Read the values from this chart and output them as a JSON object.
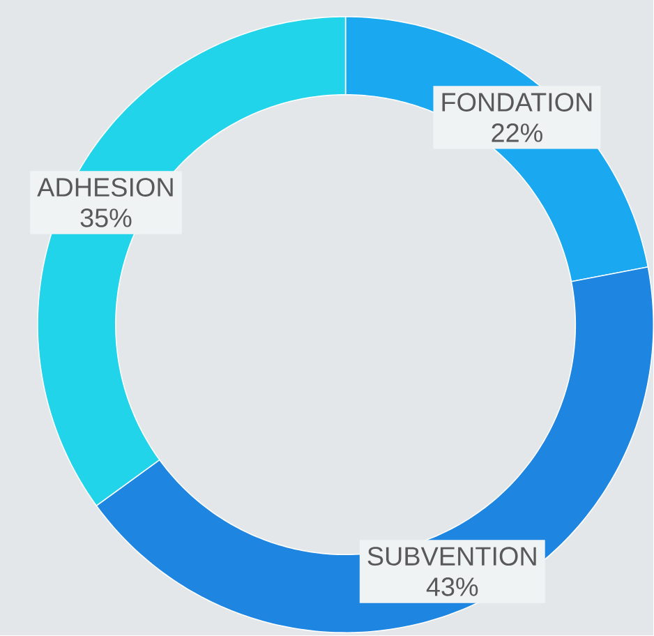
{
  "chart_data": {
    "type": "donut",
    "categories": [
      "FONDATION",
      "SUBVENTION",
      "ADHESION"
    ],
    "values": [
      22,
      43,
      35
    ],
    "value_labels": [
      "22%",
      "43%",
      "35%"
    ],
    "colors": [
      "#1aa8f0",
      "#1e86e0",
      "#22d4ea"
    ]
  }
}
